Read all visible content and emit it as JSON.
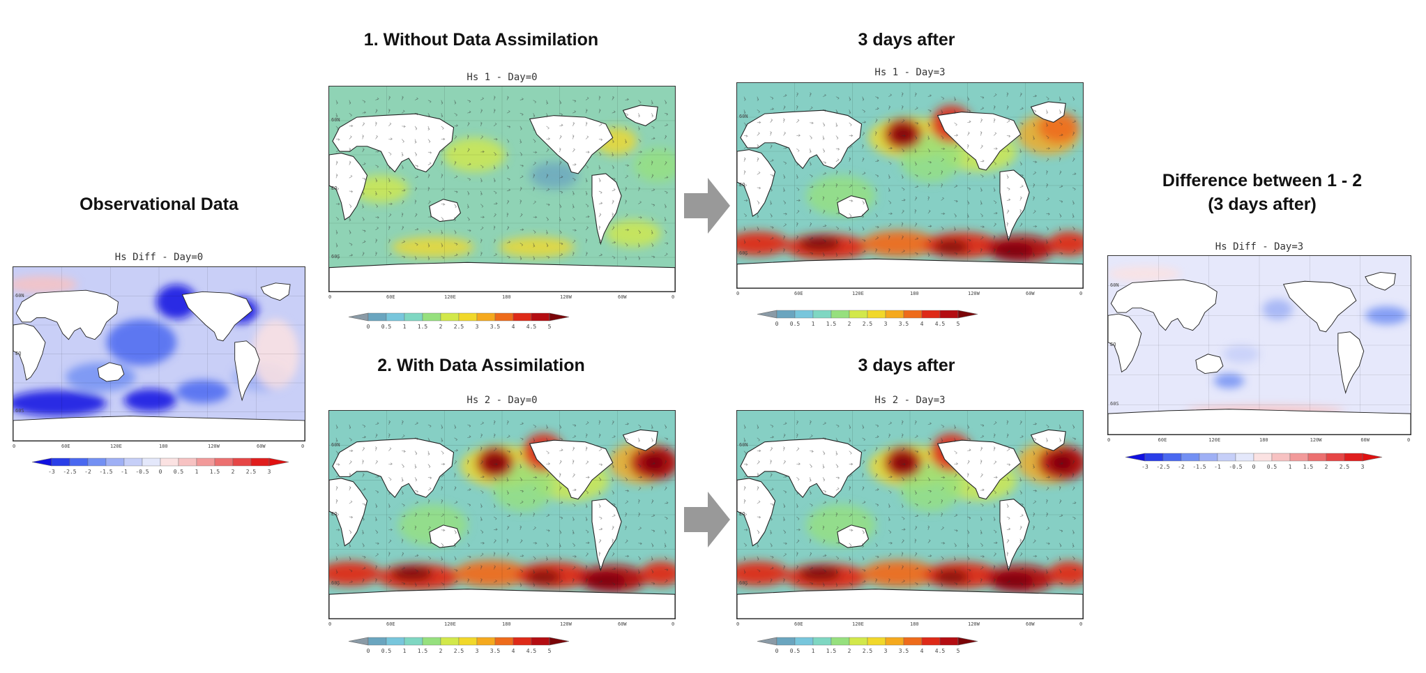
{
  "headings": {
    "observational": "Observational Data",
    "without_da": "1. Without Data Assimilation",
    "with_da": "2. With Data Assimilation",
    "after_top": "3 days after",
    "after_bottom": "3 days after",
    "difference_line1": "Difference between 1 - 2",
    "difference_line2": "(3 days after)"
  },
  "maps": {
    "obs": {
      "title": "Hs Diff  -  Day=0"
    },
    "hs1_d0": {
      "title": "Hs 1  -  Day=0"
    },
    "hs1_d3": {
      "title": "Hs 1  -  Day=3"
    },
    "hs2_d0": {
      "title": "Hs 2  -  Day=0"
    },
    "hs2_d3": {
      "title": "Hs 2  -  Day=3"
    },
    "diff_d3": {
      "title": "Hs Diff  -  Day=3"
    }
  },
  "axes": {
    "lat_ticks": [
      "60N",
      "EQ",
      "60S"
    ],
    "lon_ticks": [
      "0",
      "60E",
      "120E",
      "180",
      "120W",
      "60W",
      "0"
    ]
  },
  "colorbars": {
    "hs": {
      "labels": [
        "0",
        "0.5",
        "1",
        "1.5",
        "2",
        "2.5",
        "3",
        "3.5",
        "4",
        "4.5",
        "5"
      ],
      "colors": [
        "#8a9aa6",
        "#6aa5bf",
        "#78c6dc",
        "#7fd7c2",
        "#96e07e",
        "#d2e84a",
        "#f1d82a",
        "#f5a91e",
        "#ee6b1b",
        "#de2a18",
        "#b40d12",
        "#7a0508"
      ]
    },
    "diff": {
      "labels": [
        "-3",
        "-2.5",
        "-2",
        "-1.5",
        "-1",
        "-0.5",
        "0",
        "0.5",
        "1",
        "1.5",
        "2",
        "2.5",
        "3"
      ],
      "colors": [
        "#1010e0",
        "#2a3ee8",
        "#4a68f0",
        "#7390f3",
        "#9fb0f5",
        "#c6cff8",
        "#e4e8fb",
        "#fbe2e2",
        "#f7c2c2",
        "#f29a9a",
        "#ec7070",
        "#e64646",
        "#e01e1e",
        "#e01010"
      ]
    }
  }
}
